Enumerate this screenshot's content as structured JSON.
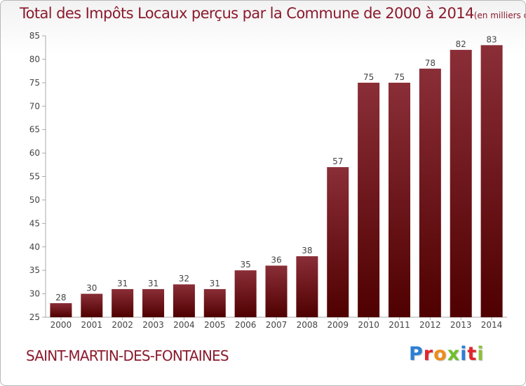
{
  "header": {
    "title": "Total des Impôts Locaux perçus par la Commune de 2000 à 2014",
    "subtitle": "(en milliers d'€)"
  },
  "footer": {
    "commune": "SAINT-MARTIN-DES-FONTAINES",
    "brand": "Proxiti"
  },
  "colors": {
    "bar_dark": "#4f0000",
    "bar_light": "#8a2e37",
    "title": "#8b1a2d",
    "brand_letters": [
      "#2a7fd4",
      "#e0262b",
      "#f08c1a",
      "#6fbf2a",
      "#2a7fd4",
      "#e0262b",
      "#8fbf3a"
    ]
  },
  "chart_data": {
    "type": "bar",
    "title": "Total des Impôts Locaux perçus par la Commune de 2000 à 2014",
    "subtitle": "(en milliers d'€)",
    "xlabel": "",
    "ylabel": "",
    "categories": [
      "2000",
      "2001",
      "2002",
      "2003",
      "2004",
      "2005",
      "2006",
      "2007",
      "2008",
      "2009",
      "2010",
      "2011",
      "2012",
      "2013",
      "2014"
    ],
    "values": [
      28,
      30,
      31,
      31,
      32,
      31,
      35,
      36,
      38,
      57,
      75,
      75,
      78,
      82,
      83
    ],
    "ylim": [
      25,
      85
    ],
    "yticks": [
      25,
      30,
      35,
      40,
      45,
      50,
      55,
      60,
      65,
      70,
      75,
      80,
      85
    ],
    "grid": false,
    "legend": "none"
  }
}
